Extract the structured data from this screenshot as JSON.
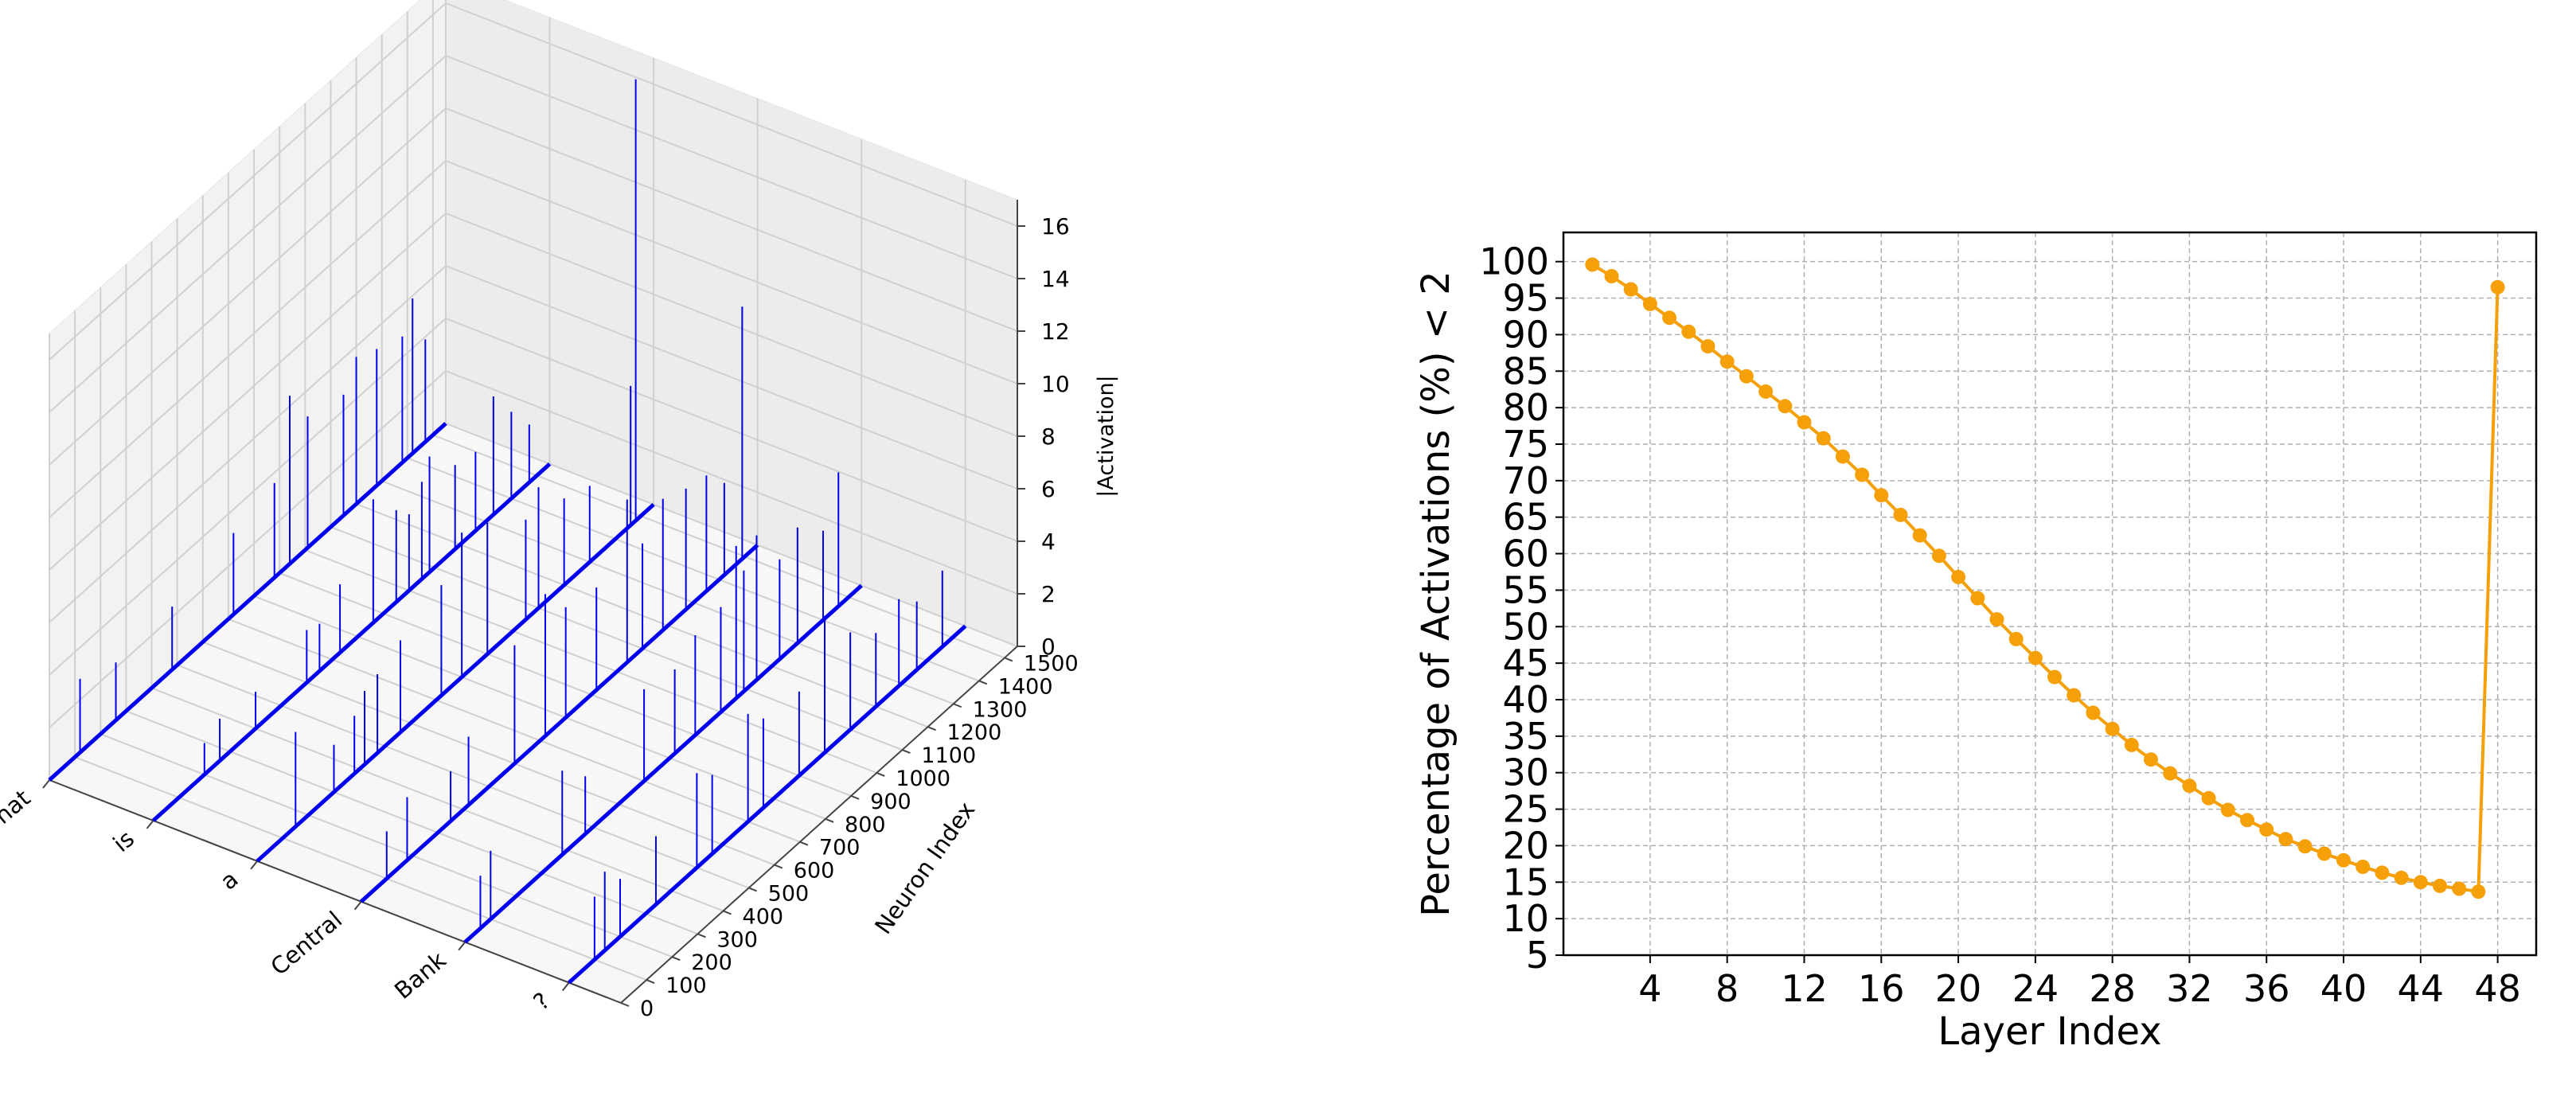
{
  "chart_data": [
    {
      "type": "bar3d",
      "zlabel": "|Activation|",
      "ylabel": "Neuron Index",
      "tokens": [
        "What",
        "is",
        "a",
        "Central",
        "Bank",
        "?"
      ],
      "neuron_ticks": [
        0,
        100,
        200,
        300,
        400,
        500,
        600,
        700,
        800,
        900,
        1000,
        1100,
        1200,
        1300,
        1400,
        1500
      ],
      "activation_ticks": [
        0,
        2,
        4,
        6,
        8,
        10,
        12,
        14,
        16
      ],
      "zlim": [
        0,
        17
      ],
      "ylim": [
        0,
        1550
      ],
      "grid": true,
      "line_color": "#0000ee",
      "spikes": [
        {
          "token": 0,
          "neuron": 120,
          "value": 2.8
        },
        {
          "token": 0,
          "neuron": 260,
          "value": 2.2
        },
        {
          "token": 0,
          "neuron": 480,
          "value": 2.4
        },
        {
          "token": 0,
          "neuron": 720,
          "value": 3.1
        },
        {
          "token": 0,
          "neuron": 880,
          "value": 3.6
        },
        {
          "token": 0,
          "neuron": 940,
          "value": 6.4
        },
        {
          "token": 0,
          "neuron": 1010,
          "value": 5.0
        },
        {
          "token": 0,
          "neuron": 1150,
          "value": 4.6
        },
        {
          "token": 0,
          "neuron": 1200,
          "value": 5.6
        },
        {
          "token": 0,
          "neuron": 1280,
          "value": 5.2
        },
        {
          "token": 0,
          "neuron": 1380,
          "value": 4.8
        },
        {
          "token": 0,
          "neuron": 1420,
          "value": 5.9
        },
        {
          "token": 0,
          "neuron": 1470,
          "value": 3.9
        },
        {
          "token": 1,
          "neuron": 200,
          "value": 1.2
        },
        {
          "token": 1,
          "neuron": 260,
          "value": 1.6
        },
        {
          "token": 1,
          "neuron": 400,
          "value": 1.4
        },
        {
          "token": 1,
          "neuron": 600,
          "value": 2.0
        },
        {
          "token": 1,
          "neuron": 650,
          "value": 1.8
        },
        {
          "token": 1,
          "neuron": 730,
          "value": 2.6
        },
        {
          "token": 1,
          "neuron": 860,
          "value": 4.7
        },
        {
          "token": 1,
          "neuron": 950,
          "value": 3.5
        },
        {
          "token": 1,
          "neuron": 1000,
          "value": 2.9
        },
        {
          "token": 1,
          "neuron": 1050,
          "value": 3.7
        },
        {
          "token": 1,
          "neuron": 1080,
          "value": 4.4
        },
        {
          "token": 1,
          "neuron": 1180,
          "value": 3.2
        },
        {
          "token": 1,
          "neuron": 1260,
          "value": 3.0
        },
        {
          "token": 1,
          "neuron": 1330,
          "value": 4.5
        },
        {
          "token": 1,
          "neuron": 1400,
          "value": 3.3
        },
        {
          "token": 1,
          "neuron": 1470,
          "value": 2.2
        },
        {
          "token": 2,
          "neuron": 150,
          "value": 3.6
        },
        {
          "token": 2,
          "neuron": 300,
          "value": 1.8
        },
        {
          "token": 2,
          "neuron": 380,
          "value": 2.2
        },
        {
          "token": 2,
          "neuron": 420,
          "value": 2.8
        },
        {
          "token": 2,
          "neuron": 470,
          "value": 3.0
        },
        {
          "token": 2,
          "neuron": 560,
          "value": 3.5
        },
        {
          "token": 2,
          "neuron": 720,
          "value": 4.2
        },
        {
          "token": 2,
          "neuron": 800,
          "value": 5.5
        },
        {
          "token": 2,
          "neuron": 900,
          "value": 5.0
        },
        {
          "token": 2,
          "neuron": 1050,
          "value": 3.8
        },
        {
          "token": 2,
          "neuron": 1100,
          "value": 4.6
        },
        {
          "token": 2,
          "neuron": 1200,
          "value": 3.3
        },
        {
          "token": 2,
          "neuron": 1300,
          "value": 2.9
        },
        {
          "token": 2,
          "neuron": 1460,
          "value": 5.3
        },
        {
          "token": 2,
          "neuron": 1480,
          "value": 16.8
        },
        {
          "token": 3,
          "neuron": 100,
          "value": 1.8
        },
        {
          "token": 3,
          "neuron": 180,
          "value": 2.4
        },
        {
          "token": 3,
          "neuron": 350,
          "value": 1.9
        },
        {
          "token": 3,
          "neuron": 420,
          "value": 2.6
        },
        {
          "token": 3,
          "neuron": 600,
          "value": 4.5
        },
        {
          "token": 3,
          "neuron": 720,
          "value": 5.4
        },
        {
          "token": 3,
          "neuron": 800,
          "value": 4.2
        },
        {
          "token": 3,
          "neuron": 920,
          "value": 3.9
        },
        {
          "token": 3,
          "neuron": 1040,
          "value": 6.2
        },
        {
          "token": 3,
          "neuron": 1100,
          "value": 4.0
        },
        {
          "token": 3,
          "neuron": 1180,
          "value": 5.0
        },
        {
          "token": 3,
          "neuron": 1270,
          "value": 4.6
        },
        {
          "token": 3,
          "neuron": 1350,
          "value": 4.4
        },
        {
          "token": 3,
          "neuron": 1420,
          "value": 3.5
        },
        {
          "token": 3,
          "neuron": 1490,
          "value": 9.6
        },
        {
          "token": 4,
          "neuron": 60,
          "value": 2.0
        },
        {
          "token": 4,
          "neuron": 100,
          "value": 2.6
        },
        {
          "token": 4,
          "neuron": 380,
          "value": 3.2
        },
        {
          "token": 4,
          "neuron": 470,
          "value": 2.2
        },
        {
          "token": 4,
          "neuron": 700,
          "value": 3.5
        },
        {
          "token": 4,
          "neuron": 820,
          "value": 3.2
        },
        {
          "token": 4,
          "neuron": 900,
          "value": 3.8
        },
        {
          "token": 4,
          "neuron": 1000,
          "value": 4.0
        },
        {
          "token": 4,
          "neuron": 1060,
          "value": 5.8
        },
        {
          "token": 4,
          "neuron": 1090,
          "value": 4.6
        },
        {
          "token": 4,
          "neuron": 1140,
          "value": 5.5
        },
        {
          "token": 4,
          "neuron": 1230,
          "value": 3.8
        },
        {
          "token": 4,
          "neuron": 1300,
          "value": 4.4
        },
        {
          "token": 4,
          "neuron": 1400,
          "value": 3.4
        },
        {
          "token": 4,
          "neuron": 1460,
          "value": 5.1
        },
        {
          "token": 5,
          "neuron": 100,
          "value": 2.4
        },
        {
          "token": 5,
          "neuron": 140,
          "value": 3.0
        },
        {
          "token": 5,
          "neuron": 200,
          "value": 2.2
        },
        {
          "token": 5,
          "neuron": 340,
          "value": 2.6
        },
        {
          "token": 5,
          "neuron": 500,
          "value": 3.6
        },
        {
          "token": 5,
          "neuron": 560,
          "value": 3.0
        },
        {
          "token": 5,
          "neuron": 700,
          "value": 4.1
        },
        {
          "token": 5,
          "neuron": 760,
          "value": 3.4
        },
        {
          "token": 5,
          "neuron": 900,
          "value": 3.2
        },
        {
          "token": 5,
          "neuron": 1000,
          "value": 5.2
        },
        {
          "token": 5,
          "neuron": 1100,
          "value": 3.7
        },
        {
          "token": 5,
          "neuron": 1200,
          "value": 2.8
        },
        {
          "token": 5,
          "neuron": 1290,
          "value": 3.3
        },
        {
          "token": 5,
          "neuron": 1360,
          "value": 2.6
        },
        {
          "token": 5,
          "neuron": 1460,
          "value": 2.9
        }
      ]
    },
    {
      "type": "line",
      "xlabel": "Layer Index",
      "ylabel": "Percentage of Activations (%) < 2",
      "x_ticks": [
        4,
        8,
        12,
        16,
        20,
        24,
        28,
        32,
        36,
        40,
        44,
        48
      ],
      "y_ticks": [
        5,
        10,
        15,
        20,
        25,
        30,
        35,
        40,
        45,
        50,
        55,
        60,
        65,
        70,
        75,
        80,
        85,
        90,
        95,
        100
      ],
      "xlim": [
        -0.5,
        50
      ],
      "ylim": [
        5,
        104
      ],
      "grid": true,
      "series": [
        {
          "color": "#f5a009",
          "x": [
            1,
            2,
            3,
            4,
            5,
            6,
            7,
            8,
            9,
            10,
            11,
            12,
            13,
            14,
            15,
            16,
            17,
            18,
            19,
            20,
            21,
            22,
            23,
            24,
            25,
            26,
            27,
            28,
            29,
            30,
            31,
            32,
            33,
            34,
            35,
            36,
            37,
            38,
            39,
            40,
            41,
            42,
            43,
            44,
            45,
            46,
            47,
            48
          ],
          "y": [
            99.6,
            98.0,
            96.2,
            94.2,
            92.3,
            90.4,
            88.4,
            86.3,
            84.3,
            82.2,
            80.2,
            78.0,
            75.8,
            73.3,
            70.8,
            68.0,
            65.3,
            62.5,
            59.7,
            56.8,
            53.9,
            51.0,
            48.3,
            45.7,
            43.1,
            40.6,
            38.2,
            36.0,
            33.8,
            31.8,
            29.9,
            28.2,
            26.5,
            24.9,
            23.5,
            22.2,
            20.9,
            19.9,
            18.9,
            18.0,
            17.1,
            16.3,
            15.6,
            15.0,
            14.5,
            14.1,
            13.7,
            96.5
          ]
        }
      ]
    }
  ]
}
